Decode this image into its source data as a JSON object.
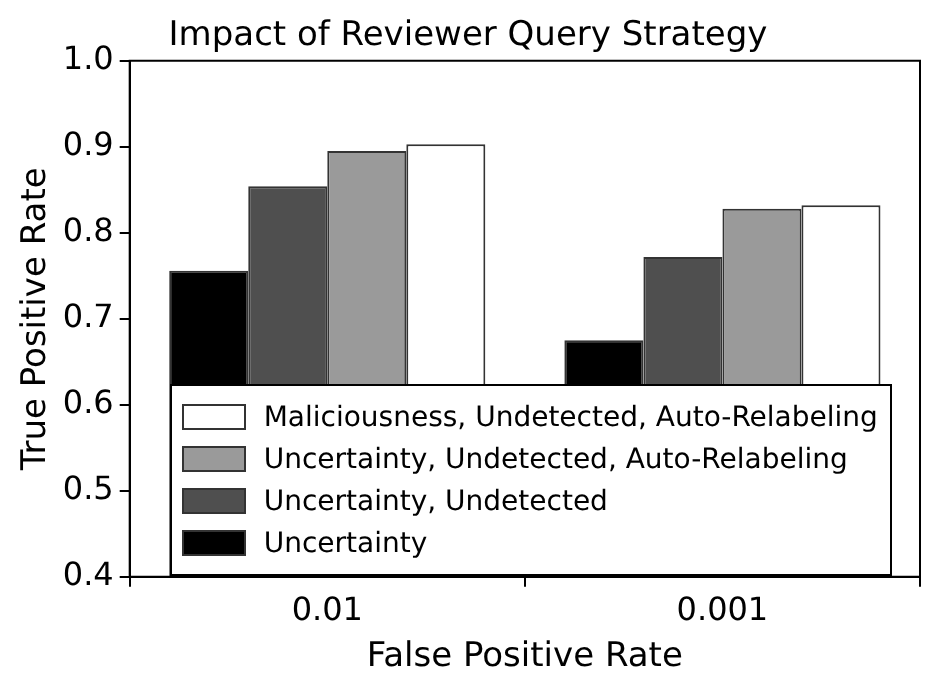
{
  "chart_data": {
    "type": "bar",
    "title": "Impact of Reviewer Query Strategy",
    "xlabel": "False Positive Rate",
    "ylabel": "True Positive Rate",
    "categories": [
      "0.01",
      "0.001"
    ],
    "series": [
      {
        "name": "Uncertainty",
        "color": "#000000",
        "values": [
          0.756,
          0.675
        ]
      },
      {
        "name": "Uncertainty, Undetected",
        "color": "#4f4f4f",
        "values": [
          0.854,
          0.772
        ]
      },
      {
        "name": "Uncertainty, Undetected, Auto-Relabeling",
        "color": "#9a9a9a",
        "values": [
          0.895,
          0.828
        ]
      },
      {
        "name": "Maliciousness, Undetected, Auto-Relabeling",
        "color": "#ffffff",
        "values": [
          0.903,
          0.832
        ]
      }
    ],
    "ylim": [
      0.4,
      1.0
    ],
    "yticks": [
      {
        "value": 0.4,
        "label": "0.4"
      },
      {
        "value": 0.5,
        "label": "0.5"
      },
      {
        "value": 0.6,
        "label": "0.6"
      },
      {
        "value": 0.7,
        "label": "0.7"
      },
      {
        "value": 0.8,
        "label": "0.8"
      },
      {
        "value": 0.9,
        "label": "0.9"
      },
      {
        "value": 1.0,
        "label": "1.0"
      }
    ],
    "grid": false,
    "legend": "bottom"
  }
}
